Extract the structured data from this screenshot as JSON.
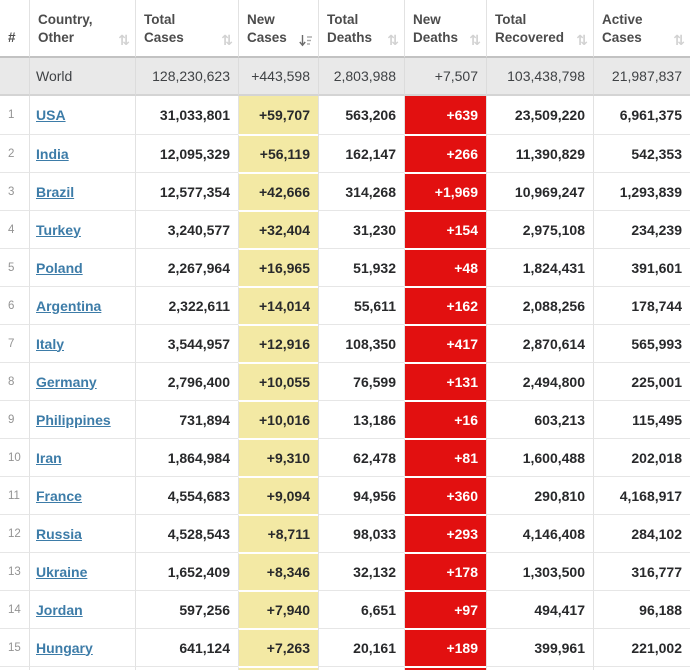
{
  "table": {
    "columns": [
      {
        "id": "rank",
        "lines": [
          "#"
        ],
        "sort": "none"
      },
      {
        "id": "country",
        "lines": [
          "Country,",
          "Other"
        ],
        "sort": "inactive"
      },
      {
        "id": "total_cases",
        "lines": [
          "Total",
          "Cases"
        ],
        "sort": "inactive"
      },
      {
        "id": "new_cases",
        "lines": [
          "New",
          "Cases"
        ],
        "sort": "desc"
      },
      {
        "id": "total_deaths",
        "lines": [
          "Total",
          "Deaths"
        ],
        "sort": "inactive"
      },
      {
        "id": "new_deaths",
        "lines": [
          "New",
          "Deaths"
        ],
        "sort": "inactive"
      },
      {
        "id": "total_recovered",
        "lines": [
          "Total",
          "Recovered"
        ],
        "sort": "inactive"
      },
      {
        "id": "active_cases",
        "lines": [
          "Active",
          "Cases"
        ],
        "sort": "inactive"
      }
    ],
    "world_row": {
      "country": "World",
      "total_cases": "128,230,623",
      "new_cases": "+443,598",
      "total_deaths": "2,803,988",
      "new_deaths": "+7,507",
      "total_recovered": "103,438,798",
      "active_cases": "21,987,837"
    },
    "rows": [
      {
        "rank": "1",
        "country": "USA",
        "total_cases": "31,033,801",
        "new_cases": "+59,707",
        "total_deaths": "563,206",
        "new_deaths": "+639",
        "total_recovered": "23,509,220",
        "active_cases": "6,961,375"
      },
      {
        "rank": "2",
        "country": "India",
        "total_cases": "12,095,329",
        "new_cases": "+56,119",
        "total_deaths": "162,147",
        "new_deaths": "+266",
        "total_recovered": "11,390,829",
        "active_cases": "542,353"
      },
      {
        "rank": "3",
        "country": "Brazil",
        "total_cases": "12,577,354",
        "new_cases": "+42,666",
        "total_deaths": "314,268",
        "new_deaths": "+1,969",
        "total_recovered": "10,969,247",
        "active_cases": "1,293,839"
      },
      {
        "rank": "4",
        "country": "Turkey",
        "total_cases": "3,240,577",
        "new_cases": "+32,404",
        "total_deaths": "31,230",
        "new_deaths": "+154",
        "total_recovered": "2,975,108",
        "active_cases": "234,239"
      },
      {
        "rank": "5",
        "country": "Poland",
        "total_cases": "2,267,964",
        "new_cases": "+16,965",
        "total_deaths": "51,932",
        "new_deaths": "+48",
        "total_recovered": "1,824,431",
        "active_cases": "391,601"
      },
      {
        "rank": "6",
        "country": "Argentina",
        "total_cases": "2,322,611",
        "new_cases": "+14,014",
        "total_deaths": "55,611",
        "new_deaths": "+162",
        "total_recovered": "2,088,256",
        "active_cases": "178,744"
      },
      {
        "rank": "7",
        "country": "Italy",
        "total_cases": "3,544,957",
        "new_cases": "+12,916",
        "total_deaths": "108,350",
        "new_deaths": "+417",
        "total_recovered": "2,870,614",
        "active_cases": "565,993"
      },
      {
        "rank": "8",
        "country": "Germany",
        "total_cases": "2,796,400",
        "new_cases": "+10,055",
        "total_deaths": "76,599",
        "new_deaths": "+131",
        "total_recovered": "2,494,800",
        "active_cases": "225,001"
      },
      {
        "rank": "9",
        "country": "Philippines",
        "total_cases": "731,894",
        "new_cases": "+10,016",
        "total_deaths": "13,186",
        "new_deaths": "+16",
        "total_recovered": "603,213",
        "active_cases": "115,495"
      },
      {
        "rank": "10",
        "country": "Iran",
        "total_cases": "1,864,984",
        "new_cases": "+9,310",
        "total_deaths": "62,478",
        "new_deaths": "+81",
        "total_recovered": "1,600,488",
        "active_cases": "202,018"
      },
      {
        "rank": "11",
        "country": "France",
        "total_cases": "4,554,683",
        "new_cases": "+9,094",
        "total_deaths": "94,956",
        "new_deaths": "+360",
        "total_recovered": "290,810",
        "active_cases": "4,168,917"
      },
      {
        "rank": "12",
        "country": "Russia",
        "total_cases": "4,528,543",
        "new_cases": "+8,711",
        "total_deaths": "98,033",
        "new_deaths": "+293",
        "total_recovered": "4,146,408",
        "active_cases": "284,102"
      },
      {
        "rank": "13",
        "country": "Ukraine",
        "total_cases": "1,652,409",
        "new_cases": "+8,346",
        "total_deaths": "32,132",
        "new_deaths": "+178",
        "total_recovered": "1,303,500",
        "active_cases": "316,777"
      },
      {
        "rank": "14",
        "country": "Jordan",
        "total_cases": "597,256",
        "new_cases": "+7,940",
        "total_deaths": "6,651",
        "new_deaths": "+97",
        "total_recovered": "494,417",
        "active_cases": "96,188"
      },
      {
        "rank": "15",
        "country": "Hungary",
        "total_cases": "641,124",
        "new_cases": "+7,263",
        "total_deaths": "20,161",
        "new_deaths": "+189",
        "total_recovered": "399,961",
        "active_cases": "221,002"
      }
    ]
  },
  "colors": {
    "new_cases_bg": "#f3e9a4",
    "new_deaths_bg": "#e21010",
    "new_deaths_text": "#ffffff",
    "country_link": "#3d7ca8",
    "world_row_bg": "#e9e9e9",
    "header_text": "#4c4c4c",
    "cell_text": "#28292b"
  },
  "icons": {
    "sort_inactive": "⇅"
  }
}
